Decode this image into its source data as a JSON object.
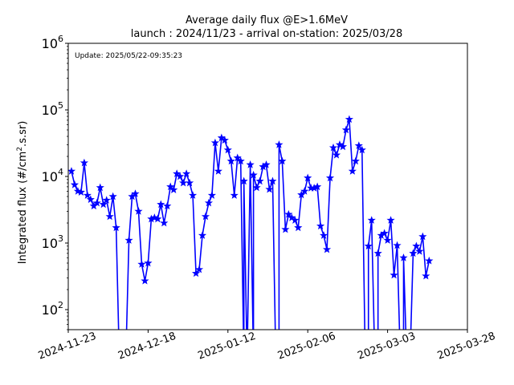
{
  "chart_data": {
    "type": "line",
    "title": "Average daily flux @E>1.6MeV",
    "subtitle": "launch : 2024/11/23 - arrival on-station: 2025/03/28",
    "annotation": "Update: 2025/05/22-09:35:23",
    "ylabel_main": "Integrated flux (#/cm",
    "ylabel_sup": "2",
    "ylabel_tail": ".s.sr)",
    "yscale": "log",
    "ylim": [
      50,
      1000000
    ],
    "xlim": [
      "2024-11-23",
      "2025-03-28"
    ],
    "x_ticks": [
      "2024-11-23",
      "2024-12-18",
      "2025-01-12",
      "2025-02-06",
      "2025-03-03",
      "2025-03-28"
    ],
    "y_ticks": [
      {
        "base": "10",
        "exp": "2",
        "value": 100
      },
      {
        "base": "10",
        "exp": "3",
        "value": 1000
      },
      {
        "base": "10",
        "exp": "4",
        "value": 10000
      },
      {
        "base": "10",
        "exp": "5",
        "value": 100000
      },
      {
        "base": "10",
        "exp": "6",
        "value": 1000000
      }
    ],
    "color": "#0000ff",
    "marker": "star",
    "grid": false,
    "points": [
      [
        "2024-11-24",
        12000
      ],
      [
        "2024-11-25",
        7500
      ],
      [
        "2024-11-26",
        6000
      ],
      [
        "2024-11-27",
        5800
      ],
      [
        "2024-11-28",
        16000
      ],
      [
        "2024-11-29",
        5200
      ],
      [
        "2024-11-30",
        4500
      ],
      [
        "2024-12-01",
        3600
      ],
      [
        "2024-12-02",
        4000
      ],
      [
        "2024-12-03",
        6800
      ],
      [
        "2024-12-04",
        3800
      ],
      [
        "2024-12-05",
        4400
      ],
      [
        "2024-12-06",
        2500
      ],
      [
        "2024-12-07",
        5000
      ],
      [
        "2024-12-08",
        1700
      ],
      [
        "2024-12-09",
        0
      ],
      [
        "2024-12-11",
        0
      ],
      [
        "2024-12-12",
        1100
      ],
      [
        "2024-12-13",
        5000
      ],
      [
        "2024-12-14",
        5500
      ],
      [
        "2024-12-15",
        3000
      ],
      [
        "2024-12-16",
        480
      ],
      [
        "2024-12-17",
        270
      ],
      [
        "2024-12-18",
        500
      ],
      [
        "2024-12-19",
        2300
      ],
      [
        "2024-12-20",
        2400
      ],
      [
        "2024-12-21",
        2300
      ],
      [
        "2024-12-22",
        3800
      ],
      [
        "2024-12-23",
        2000
      ],
      [
        "2024-12-24",
        3600
      ],
      [
        "2024-12-25",
        7000
      ],
      [
        "2024-12-26",
        6300
      ],
      [
        "2024-12-27",
        11000
      ],
      [
        "2024-12-28",
        10000
      ],
      [
        "2024-12-29",
        8000
      ],
      [
        "2024-12-30",
        11000
      ],
      [
        "2024-12-31",
        8000
      ],
      [
        "2025-01-01",
        5200
      ],
      [
        "2025-01-02",
        350
      ],
      [
        "2025-01-03",
        400
      ],
      [
        "2025-01-04",
        1300
      ],
      [
        "2025-01-05",
        2500
      ],
      [
        "2025-01-06",
        4000
      ],
      [
        "2025-01-07",
        5200
      ],
      [
        "2025-01-08",
        32000
      ],
      [
        "2025-01-09",
        12000
      ],
      [
        "2025-01-10",
        38000
      ],
      [
        "2025-01-11",
        35000
      ],
      [
        "2025-01-12",
        25000
      ],
      [
        "2025-01-13",
        17000
      ],
      [
        "2025-01-14",
        5200
      ],
      [
        "2025-01-15",
        19000
      ],
      [
        "2025-01-16",
        17000
      ],
      [
        "2025-01-17",
        0
      ],
      [
        "2025-01-17",
        8500
      ],
      [
        "2025-01-18",
        0
      ],
      [
        "2025-01-19",
        15000
      ],
      [
        "2025-01-20",
        0
      ],
      [
        "2025-01-20",
        10500
      ],
      [
        "2025-01-21",
        6800
      ],
      [
        "2025-01-22",
        8500
      ],
      [
        "2025-01-23",
        14000
      ],
      [
        "2025-01-24",
        15000
      ],
      [
        "2025-01-25",
        6400
      ],
      [
        "2025-01-26",
        8500
      ],
      [
        "2025-01-27",
        0
      ],
      [
        "2025-01-28",
        0
      ],
      [
        "2025-01-28",
        30000
      ],
      [
        "2025-01-29",
        17000
      ],
      [
        "2025-01-30",
        1600
      ],
      [
        "2025-01-31",
        2700
      ],
      [
        "2025-02-01",
        2400
      ],
      [
        "2025-02-02",
        2200
      ],
      [
        "2025-02-03",
        1700
      ],
      [
        "2025-02-04",
        5300
      ],
      [
        "2025-02-05",
        6000
      ],
      [
        "2025-02-06",
        9500
      ],
      [
        "2025-02-07",
        6700
      ],
      [
        "2025-02-08",
        6700
      ],
      [
        "2025-02-09",
        7000
      ],
      [
        "2025-02-10",
        1800
      ],
      [
        "2025-02-11",
        1300
      ],
      [
        "2025-02-12",
        800
      ],
      [
        "2025-02-13",
        9500
      ],
      [
        "2025-02-14",
        27000
      ],
      [
        "2025-02-15",
        21000
      ],
      [
        "2025-02-16",
        30000
      ],
      [
        "2025-02-17",
        28000
      ],
      [
        "2025-02-18",
        50000
      ],
      [
        "2025-02-19",
        72000
      ],
      [
        "2025-02-20",
        12000
      ],
      [
        "2025-02-21",
        17000
      ],
      [
        "2025-02-22",
        29000
      ],
      [
        "2025-02-23",
        25000
      ],
      [
        "2025-02-24",
        0
      ],
      [
        "2025-02-25",
        0
      ],
      [
        "2025-02-25",
        900
      ],
      [
        "2025-02-26",
        2200
      ],
      [
        "2025-02-27",
        0
      ],
      [
        "2025-02-28",
        0
      ],
      [
        "2025-02-28",
        700
      ],
      [
        "2025-03-01",
        1300
      ],
      [
        "2025-03-02",
        1400
      ],
      [
        "2025-03-03",
        1100
      ],
      [
        "2025-03-04",
        2200
      ],
      [
        "2025-03-05",
        330
      ],
      [
        "2025-03-06",
        920
      ],
      [
        "2025-03-07",
        0
      ],
      [
        "2025-03-08",
        0
      ],
      [
        "2025-03-08",
        600
      ],
      [
        "2025-03-09",
        0
      ],
      [
        "2025-03-10",
        0
      ],
      [
        "2025-03-11",
        700
      ],
      [
        "2025-03-12",
        900
      ],
      [
        "2025-03-13",
        750
      ],
      [
        "2025-03-14",
        1250
      ],
      [
        "2025-03-15",
        320
      ],
      [
        "2025-03-16",
        540
      ]
    ]
  }
}
